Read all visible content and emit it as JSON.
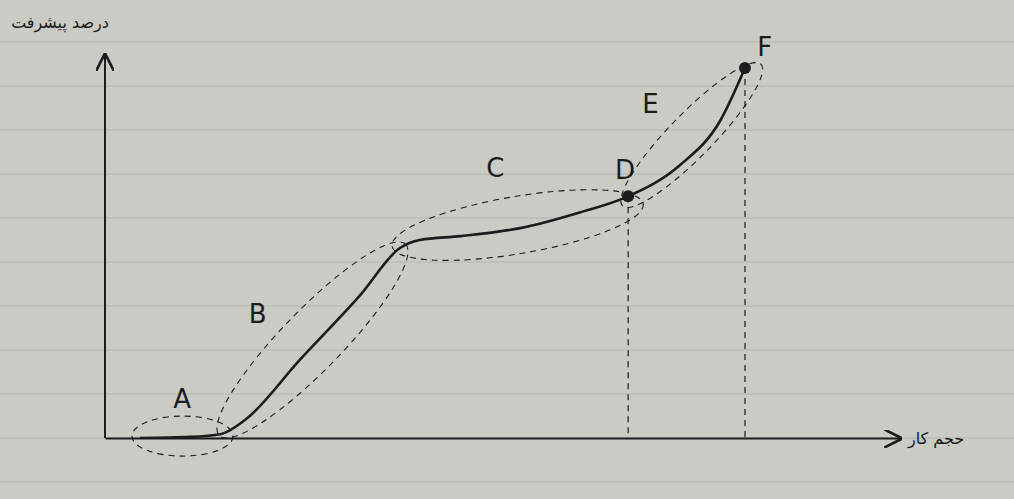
{
  "chart_data": {
    "type": "line",
    "x_label": "حجم کار",
    "y_label": "درصد پیشرفت",
    "xlim": [
      0,
      100
    ],
    "ylim": [
      0,
      100
    ],
    "tick_labels": false,
    "grid": false,
    "x": [
      4.4,
      10.7,
      14.5,
      17.6,
      24.5,
      32.1,
      37.1,
      39.6,
      44.7,
      52.2,
      59.7,
      65.8,
      72.3,
      77.4,
      80.5
    ],
    "series": [
      {
        "color": "#1c1c1c",
        "line_style": "solid",
        "values": [
          0,
          0.3,
          1.0,
          4.7,
          20.4,
          37.3,
          49.6,
          51.7,
          52.7,
          54.8,
          58.9,
          63.1,
          71.2,
          82.9,
          96.6
        ]
      }
    ],
    "regions": [
      {
        "label": "A",
        "x": [
          4.4,
          15.1
        ],
        "y": [
          0.5,
          0.5
        ],
        "label_x": 9.7,
        "label_y": 9.9
      },
      {
        "label": "B",
        "x": [
          15.1,
          37.1
        ],
        "y": [
          2.1,
          49.1
        ],
        "label_x": 19.2,
        "label_y": 32.1
      },
      {
        "label": "C",
        "x": [
          37.1,
          66.7
        ],
        "y": [
          50.4,
          60.8
        ],
        "label_x": 49.1,
        "label_y": 70.0
      },
      {
        "label": "E",
        "x": [
          65.8,
          81.8
        ],
        "y": [
          62.1,
          96.1
        ],
        "label_x": 68.6,
        "label_y": 86.9
      }
    ],
    "annotations": [
      {
        "text": "D",
        "x": 65.8,
        "y": 63.1,
        "marker": "dot",
        "label_x": 65.4,
        "label_y": 69.5
      },
      {
        "text": "F",
        "x": 80.5,
        "y": 96.6,
        "marker": "dot",
        "label_x": 83.0,
        "label_y": 101.8
      }
    ]
  }
}
